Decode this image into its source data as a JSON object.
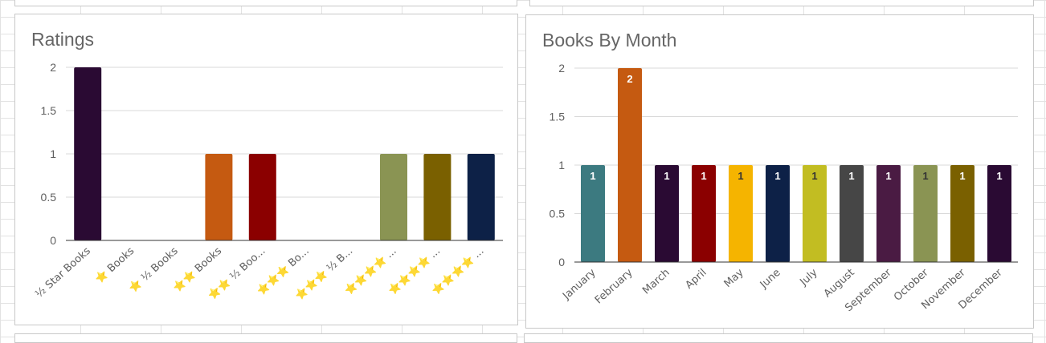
{
  "charts": [
    {
      "id": "ratings",
      "chart_data": {
        "type": "bar",
        "title": "Ratings",
        "xlabel": "",
        "ylabel": "",
        "ylim": [
          0,
          2
        ],
        "yticks": [
          "0",
          "0.5",
          "1",
          "1.5",
          "2"
        ],
        "grid": true,
        "legend": "none",
        "categories": [
          "½ Star Books",
          "⭐ Books",
          "⭐ ½ Books",
          "⭐⭐ Books",
          "⭐⭐ ½ Boo...",
          "⭐⭐⭐ Bo...",
          "⭐⭐⭐ ½ B...",
          "⭐⭐⭐⭐ ...",
          "⭐⭐⭐⭐ ...",
          "⭐⭐⭐⭐ ..."
        ],
        "values": [
          2,
          0,
          0,
          1,
          1,
          0,
          0,
          1,
          1,
          1
        ],
        "colors": [
          "#2a0a33",
          "#999999",
          "#999999",
          "#c55a11",
          "#8b0000",
          "#999999",
          "#999999",
          "#8a9453",
          "#7a6000",
          "#0d2147"
        ],
        "data_labels": false
      }
    },
    {
      "id": "books-by-month",
      "chart_data": {
        "type": "bar",
        "title": "Books By Month",
        "xlabel": "",
        "ylabel": "",
        "ylim": [
          0,
          2
        ],
        "yticks": [
          "0",
          "0.5",
          "1",
          "1.5",
          "2"
        ],
        "grid": true,
        "legend": "none",
        "categories": [
          "January",
          "February",
          "March",
          "April",
          "May",
          "June",
          "July",
          "August",
          "September",
          "October",
          "November",
          "December"
        ],
        "values": [
          1,
          2,
          1,
          1,
          1,
          1,
          1,
          1,
          1,
          1,
          1,
          1
        ],
        "colors": [
          "#3c7a80",
          "#c55a11",
          "#2a0a33",
          "#8b0000",
          "#f5b400",
          "#0d2147",
          "#c2bd22",
          "#464646",
          "#4a1b43",
          "#8a9453",
          "#7a6000",
          "#2a0a33"
        ],
        "label_colors": [
          "#ffffff",
          "#ffffff",
          "#ffffff",
          "#ffffff",
          "#333333",
          "#ffffff",
          "#333333",
          "#ffffff",
          "#ffffff",
          "#333333",
          "#ffffff",
          "#ffffff"
        ],
        "data_labels": true
      }
    }
  ]
}
